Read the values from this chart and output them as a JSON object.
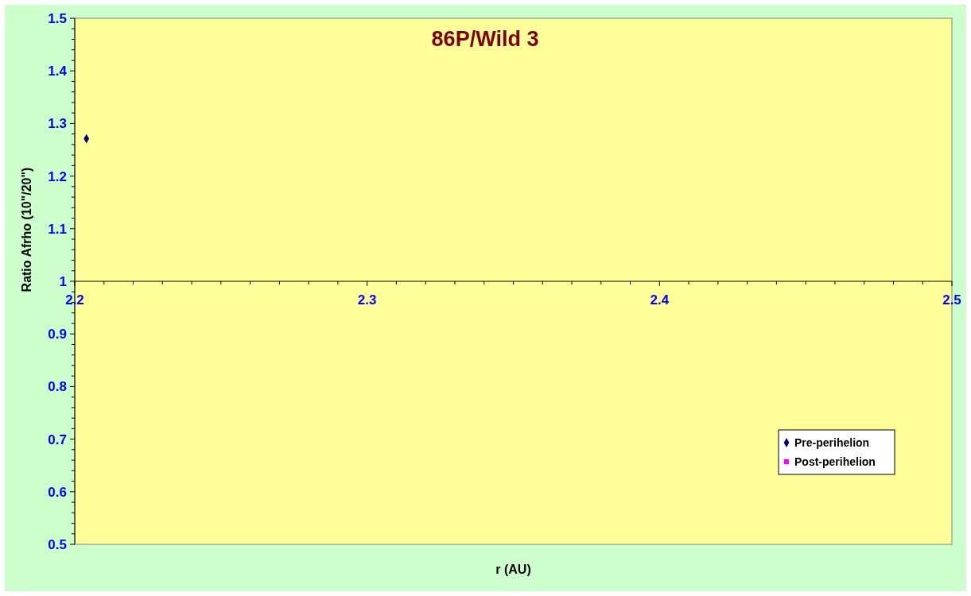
{
  "chart_data": {
    "type": "scatter",
    "title": "86P/Wild 3",
    "xlabel": "r (AU)",
    "ylabel": "Ratio Afrho (10\"/20\")",
    "xlim": [
      2.2,
      2.5
    ],
    "xticks": [
      2.2,
      2.3,
      2.4,
      2.5
    ],
    "ylim": [
      0.5,
      1.5
    ],
    "yticks": [
      {
        "value": 0.5,
        "label": "0.5"
      },
      {
        "value": 0.6,
        "label": "0.6"
      },
      {
        "value": 0.7,
        "label": "0.7"
      },
      {
        "value": 0.8,
        "label": "0.8"
      },
      {
        "value": 0.9,
        "label": "0.9"
      },
      1,
      {
        "value": 1.1,
        "label": "1.1"
      },
      {
        "value": 1.2,
        "label": "1.2"
      },
      {
        "value": 1.3,
        "label": "1.3"
      },
      {
        "value": 1.4,
        "label": "1.4"
      },
      {
        "value": 1.5,
        "label": "1.5"
      }
    ],
    "legend": "bottom right",
    "grid": false,
    "series": [
      {
        "name": "Pre-perihelion",
        "color": "#000080",
        "marker": "diamond",
        "x": [
          2.204
        ],
        "values": [
          1.271
        ]
      },
      {
        "name": "Post-perihelion",
        "color": "#ff00ff",
        "marker": "square"
      }
    ]
  }
}
